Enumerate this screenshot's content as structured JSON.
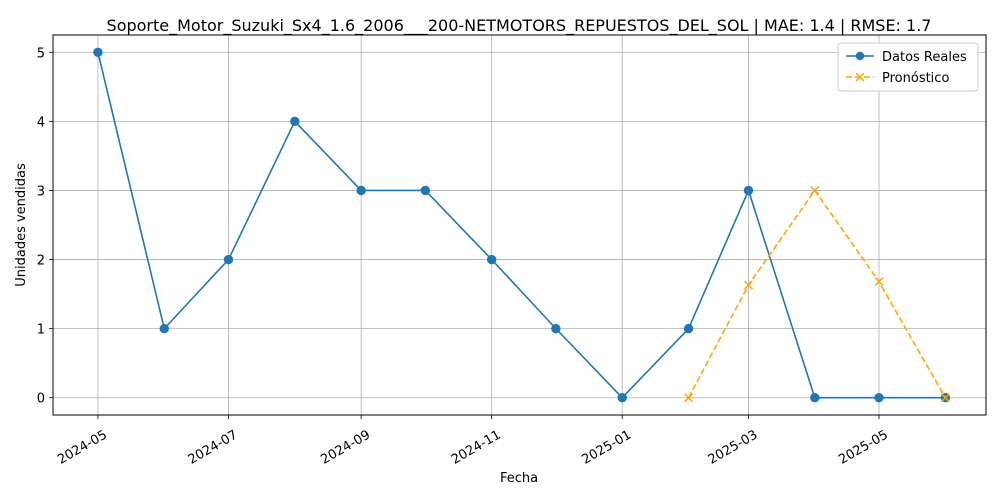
{
  "chart_data": {
    "type": "line",
    "title": "Soporte_Motor_Suzuki_Sx4_1.6_2006___200-NETMOTORS_REPUESTOS_DEL_SOL | MAE: 1.4 | RMSE: 1.7",
    "xlabel": "Fecha",
    "ylabel": "Unidades vendidas",
    "ylim": [
      -0.25,
      5.25
    ],
    "yticks": [
      0,
      1,
      2,
      3,
      4,
      5
    ],
    "xlim": [
      "2024-04-10",
      "2025-06-20"
    ],
    "xticks": [
      "2024-05",
      "2024-07",
      "2024-09",
      "2024-11",
      "2025-01",
      "2025-03",
      "2025-05"
    ],
    "grid": true,
    "legend_position": "upper-right",
    "series": [
      {
        "name": "Datos Reales",
        "color": "#1f77b4",
        "style": "solid",
        "marker": "circle",
        "x": [
          "2024-05-01",
          "2024-06-01",
          "2024-07-01",
          "2024-08-01",
          "2024-09-01",
          "2024-10-01",
          "2024-11-01",
          "2024-12-01",
          "2025-01-01",
          "2025-02-01",
          "2025-03-01",
          "2025-04-01",
          "2025-05-01",
          "2025-06-01"
        ],
        "values": [
          5,
          1,
          2,
          4,
          3,
          3,
          2,
          1,
          0,
          1,
          3,
          0,
          0,
          0
        ]
      },
      {
        "name": "Pronóstico",
        "color": "#ffa500",
        "style": "dashed",
        "marker": "x",
        "x": [
          "2025-02-01",
          "2025-03-01",
          "2025-04-01",
          "2025-05-01",
          "2025-06-01"
        ],
        "values": [
          0,
          1.63,
          3,
          1.68,
          0
        ]
      }
    ]
  }
}
